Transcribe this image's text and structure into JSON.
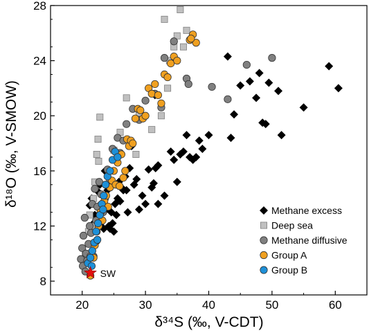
{
  "chart_data": {
    "type": "scatter",
    "xlabel": "δ³⁴S (‰, V-CDT)",
    "ylabel": "δ¹⁸O (‰, V-SMOW)",
    "xlim": [
      15,
      65
    ],
    "ylim": [
      7,
      28
    ],
    "xticks": [
      "20",
      "30",
      "40",
      "50",
      "60"
    ],
    "yticks": [
      "8",
      "12",
      "16",
      "20",
      "24",
      "28"
    ],
    "legend_position": "bottom-right",
    "series": [
      {
        "name": "Methane excess",
        "marker": "diamond",
        "color": "#000000",
        "points": [
          [
            21.2,
            13.5
          ],
          [
            21.5,
            14.0
          ],
          [
            21.8,
            12.2
          ],
          [
            22.0,
            12.8
          ],
          [
            22.2,
            10.8
          ],
          [
            22.5,
            14.5
          ],
          [
            22.8,
            15.0
          ],
          [
            23.0,
            12.0
          ],
          [
            23.2,
            12.4
          ],
          [
            23.4,
            11.8
          ],
          [
            23.6,
            16.0
          ],
          [
            23.8,
            13.2
          ],
          [
            24.0,
            14.6
          ],
          [
            24.2,
            12.0
          ],
          [
            24.4,
            11.8
          ],
          [
            24.6,
            13.0
          ],
          [
            24.8,
            12.2
          ],
          [
            25.0,
            11.6
          ],
          [
            25.2,
            13.6
          ],
          [
            25.4,
            12.8
          ],
          [
            25.6,
            14.0
          ],
          [
            25.8,
            15.2
          ],
          [
            26.0,
            13.8
          ],
          [
            26.2,
            14.8
          ],
          [
            26.5,
            14.6
          ],
          [
            26.8,
            15.6
          ],
          [
            27.0,
            14.6
          ],
          [
            27.2,
            13.0
          ],
          [
            27.5,
            16.2
          ],
          [
            27.8,
            17.8
          ],
          [
            28.2,
            15.0
          ],
          [
            28.6,
            15.4
          ],
          [
            29.0,
            13.2
          ],
          [
            29.5,
            14.2
          ],
          [
            30.0,
            13.6
          ],
          [
            30.5,
            16.1
          ],
          [
            31.0,
            14.8
          ],
          [
            31.3,
            15.1
          ],
          [
            31.6,
            16.2
          ],
          [
            32.0,
            16.4
          ],
          [
            32.0,
            13.6
          ],
          [
            33.0,
            14.2
          ],
          [
            34.0,
            17.4
          ],
          [
            34.5,
            16.8
          ],
          [
            35.0,
            15.2
          ],
          [
            35.5,
            17.2
          ],
          [
            36.0,
            17.4
          ],
          [
            36.5,
            18.6
          ],
          [
            37.0,
            17.0
          ],
          [
            37.5,
            16.8
          ],
          [
            38.0,
            17.0
          ],
          [
            38.5,
            18.2
          ],
          [
            39.0,
            17.6
          ],
          [
            40.0,
            18.6
          ],
          [
            43.0,
            24.3
          ],
          [
            43.5,
            18.4
          ],
          [
            44.0,
            20.1
          ],
          [
            45.0,
            22.2
          ],
          [
            46.5,
            22.5
          ],
          [
            47.5,
            21.3
          ],
          [
            48.0,
            23.1
          ],
          [
            48.5,
            19.5
          ],
          [
            49.0,
            19.4
          ],
          [
            49.5,
            22.4
          ],
          [
            51.0,
            21.8
          ],
          [
            51.5,
            18.6
          ],
          [
            55.0,
            20.6
          ],
          [
            59.0,
            23.6
          ],
          [
            60.5,
            22.0
          ],
          [
            31.5,
            21.5
          ]
        ]
      },
      {
        "name": "Deep sea",
        "marker": "square",
        "color": "#c0c0c0",
        "points": [
          [
            20.5,
            10.0
          ],
          [
            21.0,
            11.6
          ],
          [
            21.2,
            12.8
          ],
          [
            21.5,
            12.0
          ],
          [
            21.8,
            14.0
          ],
          [
            22.0,
            15.2
          ],
          [
            22.3,
            17.2
          ],
          [
            22.5,
            18.3
          ],
          [
            22.8,
            19.9
          ],
          [
            23.0,
            13.5
          ],
          [
            24.0,
            15.0
          ],
          [
            25.0,
            17.5
          ],
          [
            26.0,
            18.8
          ],
          [
            27.0,
            21.3
          ],
          [
            28.5,
            17.2
          ],
          [
            29.0,
            20.2
          ],
          [
            31.0,
            19.0
          ],
          [
            32.5,
            20.0
          ],
          [
            33.5,
            22.0
          ],
          [
            33.8,
            24.0
          ],
          [
            34.5,
            25.0
          ],
          [
            35.0,
            25.8
          ],
          [
            35.5,
            27.7
          ],
          [
            36.0,
            25.0
          ],
          [
            36.5,
            26.2
          ],
          [
            33.0,
            27.0
          ],
          [
            22.6,
            16.7
          ]
        ]
      },
      {
        "name": "Methane diffusive",
        "marker": "circle",
        "color": "#808080",
        "points": [
          [
            19.8,
            9.6
          ],
          [
            20.0,
            10.4
          ],
          [
            20.1,
            9.1
          ],
          [
            20.2,
            11.3
          ],
          [
            20.4,
            12.6
          ],
          [
            20.6,
            10.0
          ],
          [
            20.8,
            9.5
          ],
          [
            21.0,
            10.7
          ],
          [
            21.2,
            12.0
          ],
          [
            21.4,
            11.5
          ],
          [
            21.6,
            13.6
          ],
          [
            21.8,
            9.8
          ],
          [
            22.0,
            14.7
          ],
          [
            22.2,
            12.4
          ],
          [
            22.4,
            13.4
          ],
          [
            22.7,
            15.2
          ],
          [
            23.0,
            14.3
          ],
          [
            23.3,
            13.0
          ],
          [
            23.6,
            14.0
          ],
          [
            24.0,
            16.1
          ],
          [
            24.4,
            15.3
          ],
          [
            24.8,
            17.6
          ],
          [
            25.2,
            16.8
          ],
          [
            25.6,
            18.4
          ],
          [
            26.0,
            17.3
          ],
          [
            26.5,
            18.2
          ],
          [
            27.0,
            19.4
          ],
          [
            28.0,
            20.5
          ],
          [
            29.0,
            19.7
          ],
          [
            30.0,
            21.1
          ],
          [
            31.5,
            21.6
          ],
          [
            32.5,
            20.6
          ],
          [
            33.0,
            24.2
          ],
          [
            34.5,
            25.4
          ],
          [
            36.5,
            22.7
          ],
          [
            40.5,
            22.1
          ],
          [
            43.0,
            21.2
          ],
          [
            46.0,
            23.7
          ],
          [
            50.0,
            24.2
          ],
          [
            20.5,
            8.7
          ],
          [
            21.3,
            9.8
          ],
          [
            36.8,
            22.3
          ]
        ]
      },
      {
        "name": "Group A",
        "marker": "circle",
        "color": "#f0a020",
        "points": [
          [
            21.3,
            8.4
          ],
          [
            21.8,
            9.7
          ],
          [
            22.0,
            10.6
          ],
          [
            22.3,
            11.6
          ],
          [
            22.6,
            12.0
          ],
          [
            22.9,
            13.0
          ],
          [
            23.2,
            12.4
          ],
          [
            23.5,
            13.8
          ],
          [
            23.8,
            14.2
          ],
          [
            24.1,
            13.4
          ],
          [
            24.4,
            14.8
          ],
          [
            24.7,
            15.3
          ],
          [
            25.0,
            16.0
          ],
          [
            25.3,
            15.0
          ],
          [
            25.6,
            16.6
          ],
          [
            25.9,
            14.9
          ],
          [
            26.2,
            17.2
          ],
          [
            26.5,
            15.5
          ],
          [
            26.8,
            16.0
          ],
          [
            27.1,
            18.3
          ],
          [
            27.4,
            17.8
          ],
          [
            27.7,
            18.2
          ],
          [
            28.0,
            18.0
          ],
          [
            28.4,
            19.8
          ],
          [
            28.8,
            20.5
          ],
          [
            29.2,
            20.4
          ],
          [
            29.6,
            19.8
          ],
          [
            30.0,
            20.0
          ],
          [
            30.5,
            22.0
          ],
          [
            31.0,
            21.6
          ],
          [
            31.5,
            22.3
          ],
          [
            32.0,
            21.5
          ],
          [
            32.5,
            20.9
          ],
          [
            33.0,
            23.0
          ],
          [
            33.5,
            22.8
          ],
          [
            34.0,
            23.8
          ],
          [
            34.5,
            24.3
          ],
          [
            35.0,
            24.0
          ],
          [
            37.0,
            25.5
          ],
          [
            37.5,
            25.9
          ],
          [
            38.0,
            25.3
          ],
          [
            37.2,
            25.6
          ]
        ]
      },
      {
        "name": "Group B",
        "marker": "circle",
        "color": "#1e90d8",
        "points": [
          [
            20.9,
            9.3
          ],
          [
            21.3,
            9.7
          ],
          [
            21.6,
            10.2
          ],
          [
            21.9,
            10.8
          ],
          [
            22.2,
            11.6
          ],
          [
            22.5,
            12.2
          ],
          [
            22.8,
            12.8
          ],
          [
            23.1,
            13.6
          ],
          [
            23.4,
            14.2
          ],
          [
            23.7,
            15.0
          ],
          [
            24.0,
            15.6
          ],
          [
            24.4,
            16.0
          ],
          [
            24.8,
            16.8
          ],
          [
            25.2,
            17.4
          ],
          [
            25.6,
            17.0
          ],
          [
            21.5,
            9.1
          ],
          [
            22.4,
            11.0
          ],
          [
            23.3,
            13.2
          ]
        ]
      }
    ],
    "annotations": [
      {
        "text": "SW",
        "x": 21.3,
        "y": 8.6,
        "marker": "star",
        "color": "#e01010"
      }
    ]
  }
}
